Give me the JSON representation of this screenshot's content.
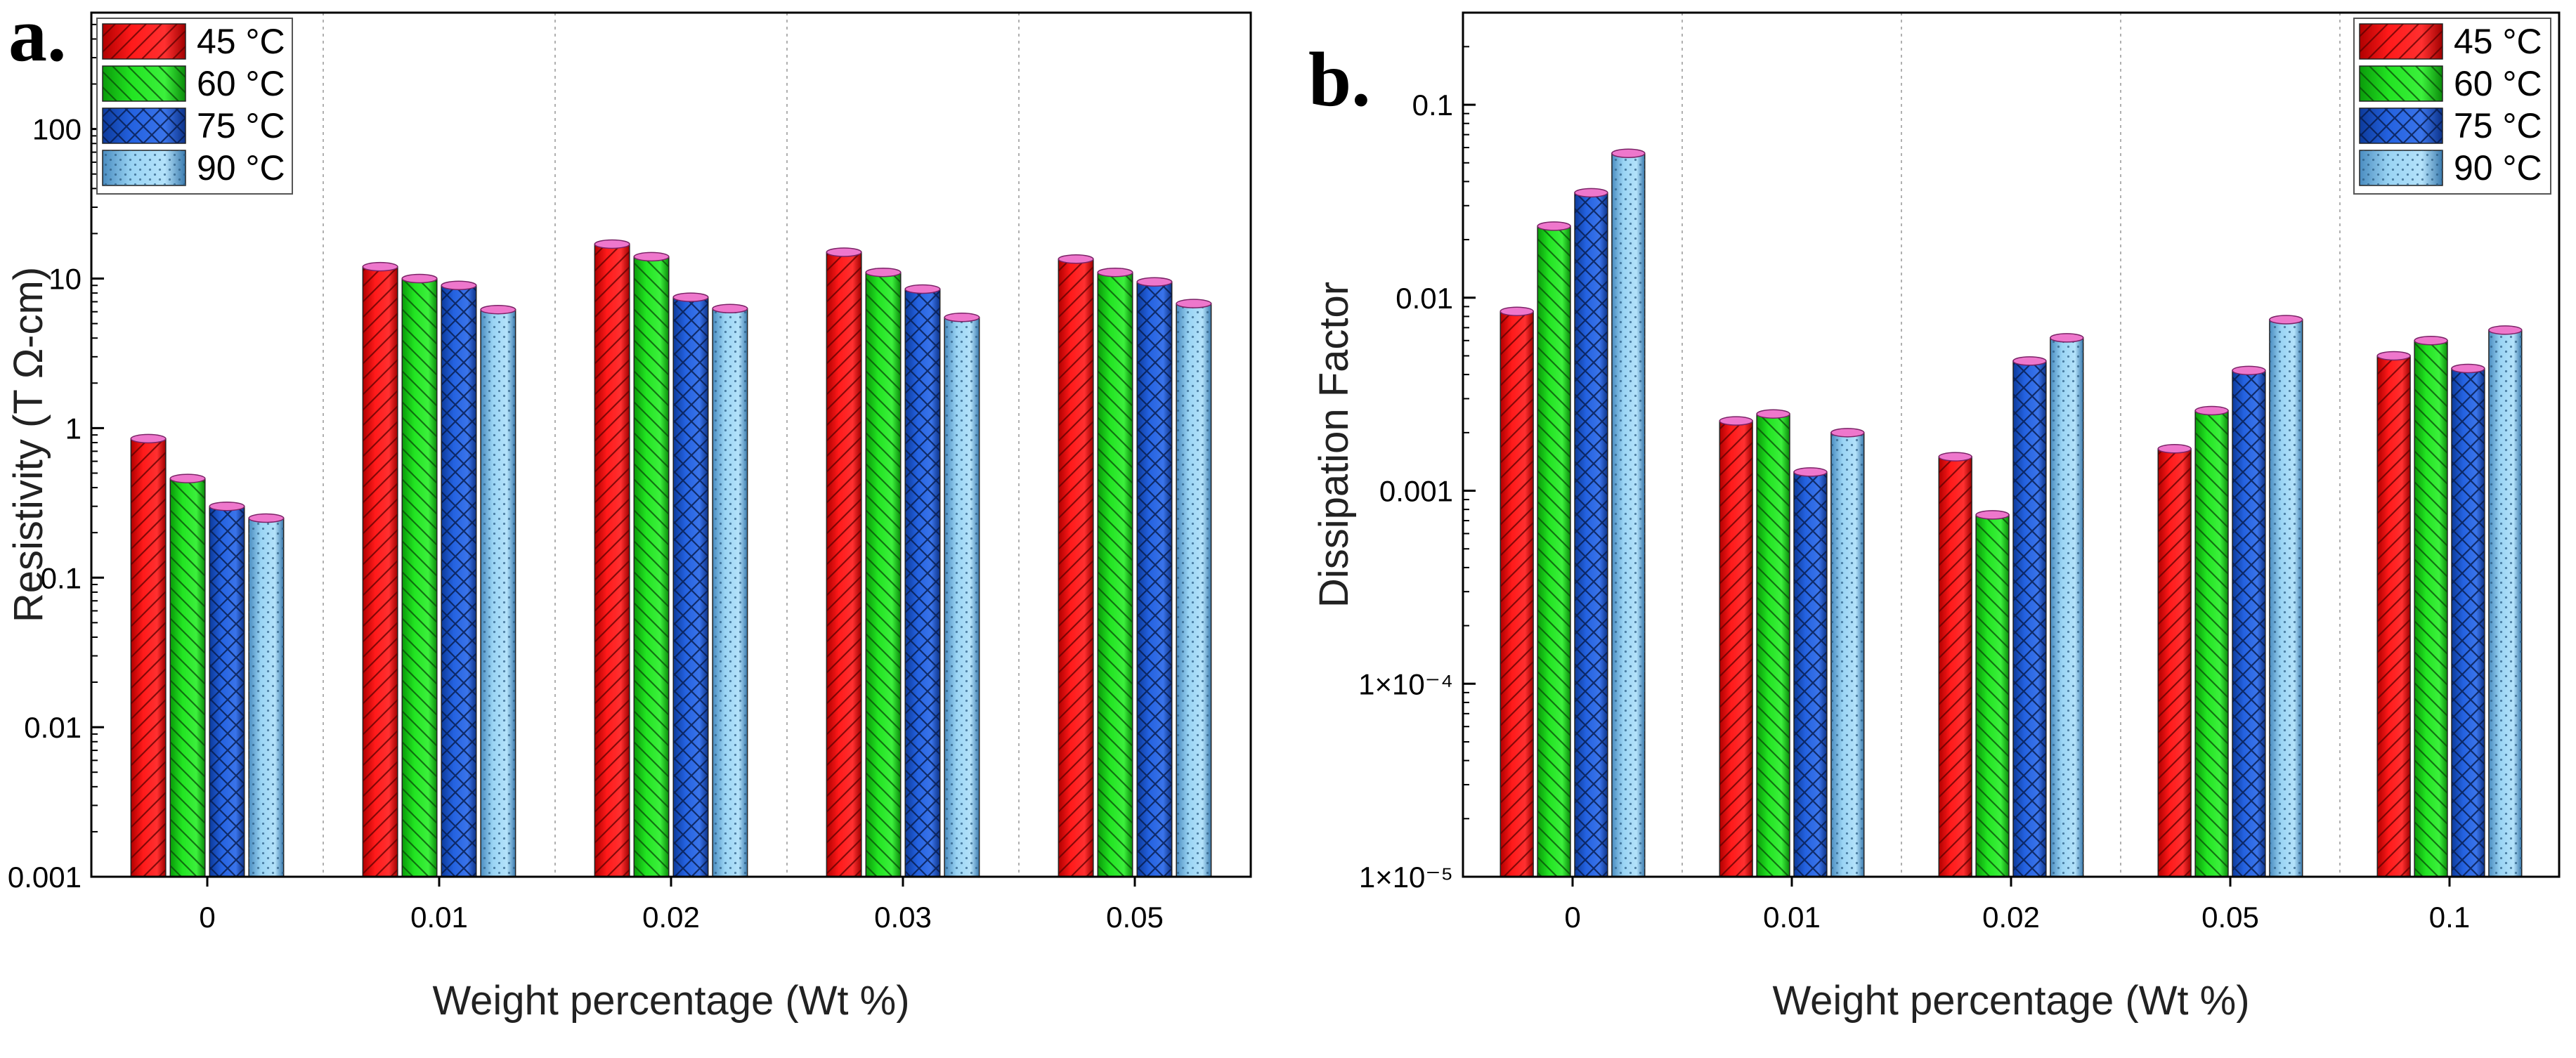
{
  "chart_data": [
    {
      "panel_label": "a.",
      "type": "bar",
      "scale": "log",
      "xlabel": "Weight percentage (Wt %)",
      "ylabel": "Resistivity (T Ω-cm)",
      "categories": [
        "0",
        "0.01",
        "0.02",
        "0.03",
        "0.05"
      ],
      "ylim": [
        0.001,
        600
      ],
      "yticks": [
        0.001,
        0.01,
        0.1,
        1,
        10,
        100
      ],
      "ytick_labels": [
        "0.001",
        "0.01",
        "0.1",
        "1",
        "10",
        "100"
      ],
      "legend_position": "top-left",
      "series": [
        {
          "name": "45 °C",
          "color": "#ff1a1a",
          "pattern": "diag-right",
          "values": [
            0.85,
            12.0,
            17.0,
            15.0,
            13.5
          ]
        },
        {
          "name": "60 °C",
          "color": "#1ee01e",
          "pattern": "diag-left",
          "values": [
            0.46,
            10.0,
            14.0,
            11.0,
            11.0
          ]
        },
        {
          "name": "75 °C",
          "color": "#1e5ad8",
          "pattern": "crosshatch",
          "values": [
            0.3,
            9.0,
            7.5,
            8.5,
            9.5
          ]
        },
        {
          "name": "90 °C",
          "color": "#8ccdf0",
          "pattern": "dots",
          "values": [
            0.25,
            6.2,
            6.3,
            5.5,
            6.8
          ]
        }
      ]
    },
    {
      "panel_label": "b.",
      "type": "bar",
      "scale": "log",
      "xlabel": "Weight percentage (Wt %)",
      "ylabel": "Dissipation Factor",
      "categories": [
        "0",
        "0.01",
        "0.02",
        "0.05",
        "0.1"
      ],
      "ylim": [
        1e-05,
        0.3
      ],
      "yticks": [
        1e-05,
        0.0001,
        0.001,
        0.01,
        0.1
      ],
      "ytick_labels": [
        "1×10⁻⁵",
        "1×10⁻⁴",
        "0.001",
        "0.01",
        "0.1"
      ],
      "legend_position": "top-right",
      "series": [
        {
          "name": "45 °C",
          "color": "#ff1a1a",
          "pattern": "diag-right",
          "values": [
            0.0085,
            0.0023,
            0.0015,
            0.00165,
            0.005
          ]
        },
        {
          "name": "60 °C",
          "color": "#1ee01e",
          "pattern": "diag-left",
          "values": [
            0.0235,
            0.0025,
            0.00075,
            0.0026,
            0.006
          ]
        },
        {
          "name": "75 °C",
          "color": "#1e5ad8",
          "pattern": "crosshatch",
          "values": [
            0.035,
            0.00125,
            0.0047,
            0.0042,
            0.0043
          ]
        },
        {
          "name": "90 °C",
          "color": "#8ccdf0",
          "pattern": "dots",
          "values": [
            0.056,
            0.002,
            0.0062,
            0.0077,
            0.0068
          ]
        }
      ]
    }
  ]
}
